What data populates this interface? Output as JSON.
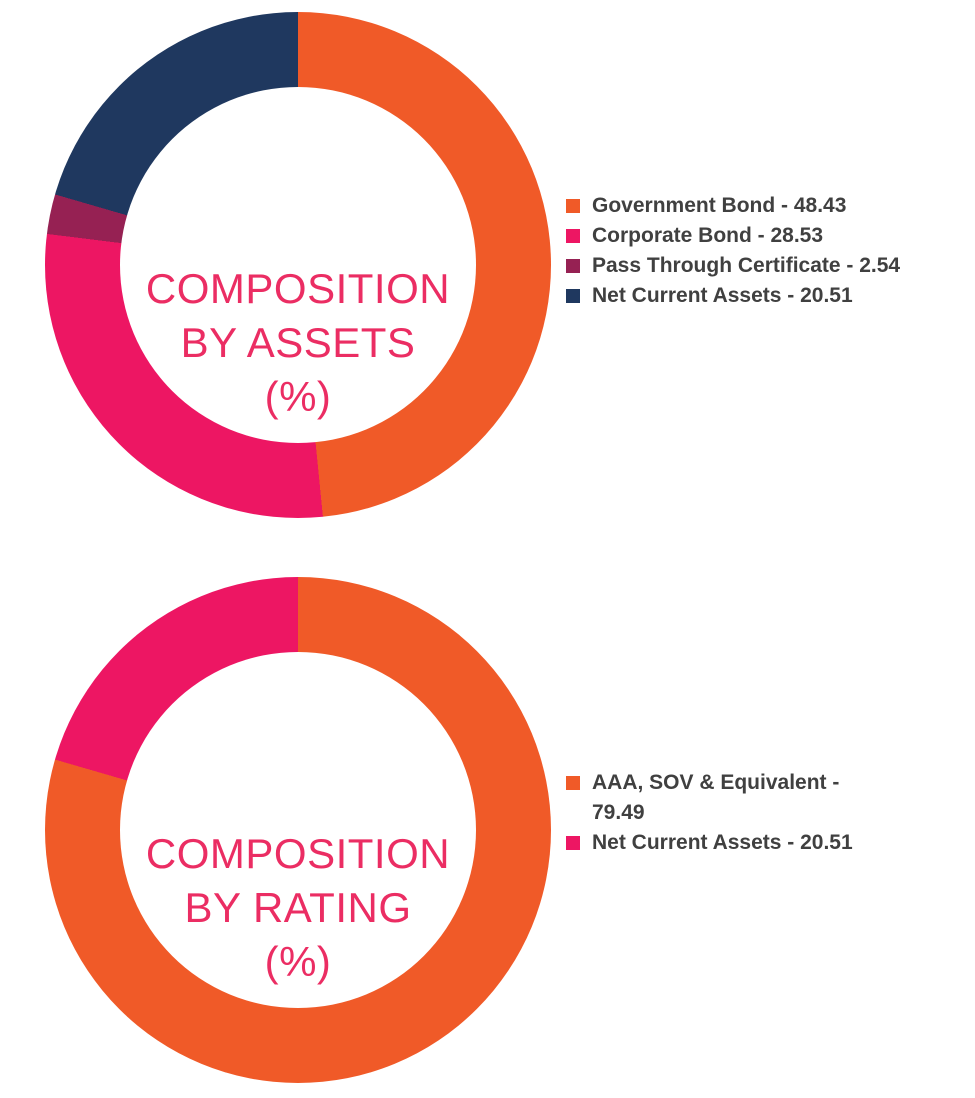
{
  "page": {
    "background_color": "#ffffff"
  },
  "chart_data": [
    {
      "type": "pie",
      "subtype": "donut",
      "title": "COMPOSITION BY ASSETS (%)",
      "title_lines": [
        "COMPOSITION",
        "BY ASSETS",
        "(%)"
      ],
      "title_color": "#EB2D63",
      "start_angle_deg": 0,
      "direction": "clockwise",
      "hole_ratio": 0.7,
      "legend": {
        "position": "right",
        "separator": " - ",
        "text_color": "#404040",
        "marker_shape": "square"
      },
      "segments": [
        {
          "label": "Government Bond",
          "value": 48.43,
          "color": "#F05A28"
        },
        {
          "label": "Corporate Bond",
          "value": 28.53,
          "color": "#ED1663"
        },
        {
          "label": "Pass Through Certificate",
          "value": 2.54,
          "color": "#962153"
        },
        {
          "label": "Net Current Assets",
          "value": 20.51,
          "color": "#1F385F"
        }
      ]
    },
    {
      "type": "pie",
      "subtype": "donut",
      "title": "COMPOSITION BY RATING (%)",
      "title_lines": [
        "COMPOSITION",
        "BY RATING",
        "(%)"
      ],
      "title_color": "#EB2D63",
      "start_angle_deg": 0,
      "direction": "clockwise",
      "hole_ratio": 0.7,
      "legend": {
        "position": "right",
        "separator": " - ",
        "text_color": "#404040",
        "marker_shape": "square"
      },
      "segments": [
        {
          "label": "AAA, SOV & Equivalent",
          "value": 79.49,
          "color": "#F05A28"
        },
        {
          "label": "Net Current Assets",
          "value": 20.51,
          "color": "#ED1663"
        }
      ]
    }
  ]
}
